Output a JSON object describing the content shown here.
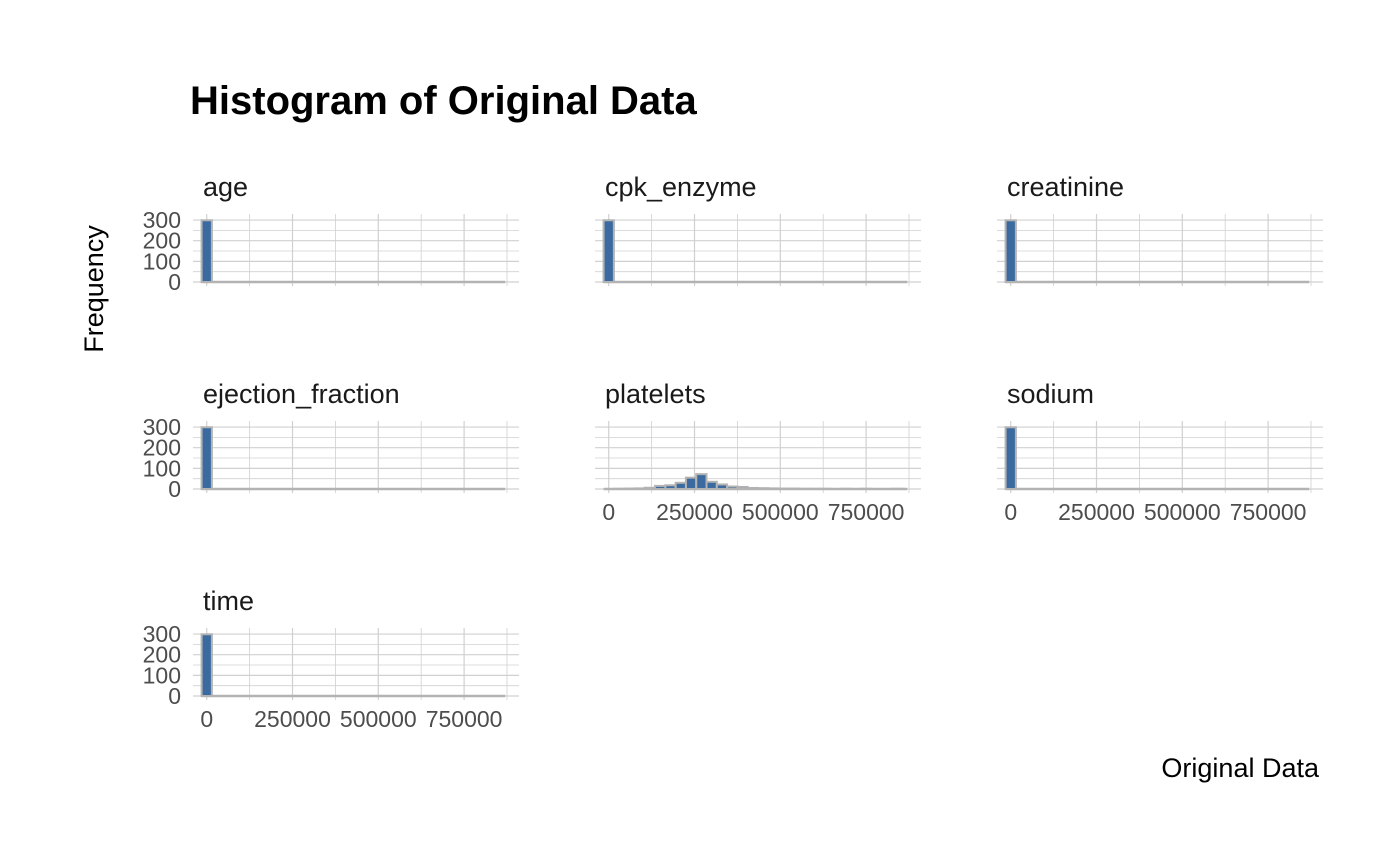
{
  "chart_data": {
    "type": "bar",
    "title": "Histogram of Original Data",
    "xlabel": "Original Data",
    "ylabel": "Frequency",
    "xlim": [
      -40000,
      910000
    ],
    "ylim": [
      0,
      300
    ],
    "bin_width": 30000,
    "y_ticks": [
      0,
      100,
      200,
      300
    ],
    "x_ticks": [
      0,
      250000,
      500000,
      750000
    ],
    "x_tick_labels": [
      "0",
      "250000",
      "500000",
      "750000"
    ],
    "colors": {
      "bar_fill": "#3a6aa0",
      "bar_outline": "#b3b3b3",
      "grid": "#d0d0d0"
    },
    "facets": [
      {
        "name": "age",
        "show_y_axis": true,
        "show_x_axis": false,
        "bins": [
          {
            "x": 0,
            "count": 299
          }
        ]
      },
      {
        "name": "cpk_enzyme",
        "show_y_axis": false,
        "show_x_axis": false,
        "bins": [
          {
            "x": 0,
            "count": 299
          }
        ]
      },
      {
        "name": "creatinine",
        "show_y_axis": false,
        "show_x_axis": false,
        "bins": [
          {
            "x": 0,
            "count": 299
          }
        ]
      },
      {
        "name": "ejection_fraction",
        "show_y_axis": true,
        "show_x_axis": false,
        "bins": [
          {
            "x": 0,
            "count": 299
          }
        ]
      },
      {
        "name": "platelets",
        "show_y_axis": false,
        "show_x_axis": true,
        "bins": [
          {
            "x": 30000,
            "count": 1
          },
          {
            "x": 60000,
            "count": 2
          },
          {
            "x": 90000,
            "count": 3
          },
          {
            "x": 120000,
            "count": 6
          },
          {
            "x": 150000,
            "count": 15
          },
          {
            "x": 180000,
            "count": 18
          },
          {
            "x": 210000,
            "count": 30
          },
          {
            "x": 240000,
            "count": 55
          },
          {
            "x": 270000,
            "count": 72
          },
          {
            "x": 300000,
            "count": 35
          },
          {
            "x": 330000,
            "count": 22
          },
          {
            "x": 360000,
            "count": 12
          },
          {
            "x": 390000,
            "count": 10
          },
          {
            "x": 420000,
            "count": 5
          },
          {
            "x": 450000,
            "count": 4
          },
          {
            "x": 480000,
            "count": 3
          },
          {
            "x": 510000,
            "count": 2
          },
          {
            "x": 540000,
            "count": 2
          },
          {
            "x": 570000,
            "count": 1
          },
          {
            "x": 600000,
            "count": 1
          },
          {
            "x": 630000,
            "count": 1
          },
          {
            "x": 690000,
            "count": 1
          },
          {
            "x": 750000,
            "count": 1
          },
          {
            "x": 840000,
            "count": 1
          }
        ]
      },
      {
        "name": "sodium",
        "show_y_axis": false,
        "show_x_axis": true,
        "bins": [
          {
            "x": 0,
            "count": 299
          }
        ]
      },
      {
        "name": "time",
        "show_y_axis": true,
        "show_x_axis": true,
        "bins": [
          {
            "x": 0,
            "count": 299
          }
        ]
      }
    ]
  }
}
